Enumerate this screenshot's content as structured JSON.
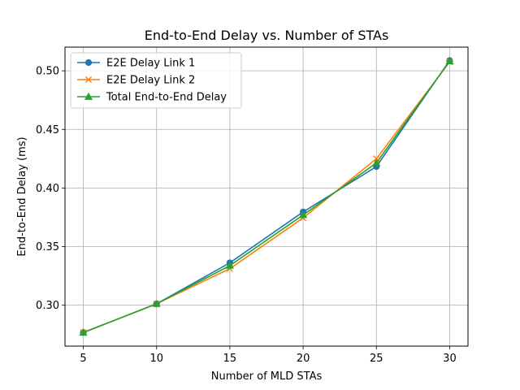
{
  "chart_data": {
    "type": "line",
    "title": "End-to-End Delay vs. Number of STAs",
    "xlabel": "Number of MLD STAs",
    "ylabel": "End-to-End Delay (ms)",
    "x": [
      5,
      10,
      15,
      20,
      25,
      30
    ],
    "x_ticks": [
      "5",
      "10",
      "15",
      "20",
      "25",
      "30"
    ],
    "y_ticks": [
      "0.30",
      "0.35",
      "0.40",
      "0.45",
      "0.50"
    ],
    "xlim": [
      3.75,
      31.25
    ],
    "ylim": [
      0.2651,
      0.5202
    ],
    "grid": true,
    "legend_position": "upper-left",
    "series": [
      {
        "name": "E2E Delay Link 1",
        "color": "#1f77b4",
        "marker": "circle",
        "values": [
          0.2767,
          0.3012,
          0.3362,
          0.3796,
          0.4183,
          0.5088
        ]
      },
      {
        "name": "E2E Delay Link 2",
        "color": "#ff7f0e",
        "marker": "x",
        "values": [
          0.2767,
          0.3012,
          0.3312,
          0.3745,
          0.425,
          0.5076
        ]
      },
      {
        "name": "Total End-to-End Delay",
        "color": "#2ca02c",
        "marker": "triangle-up",
        "values": [
          0.2767,
          0.3012,
          0.3338,
          0.377,
          0.4214,
          0.5082
        ]
      }
    ]
  }
}
